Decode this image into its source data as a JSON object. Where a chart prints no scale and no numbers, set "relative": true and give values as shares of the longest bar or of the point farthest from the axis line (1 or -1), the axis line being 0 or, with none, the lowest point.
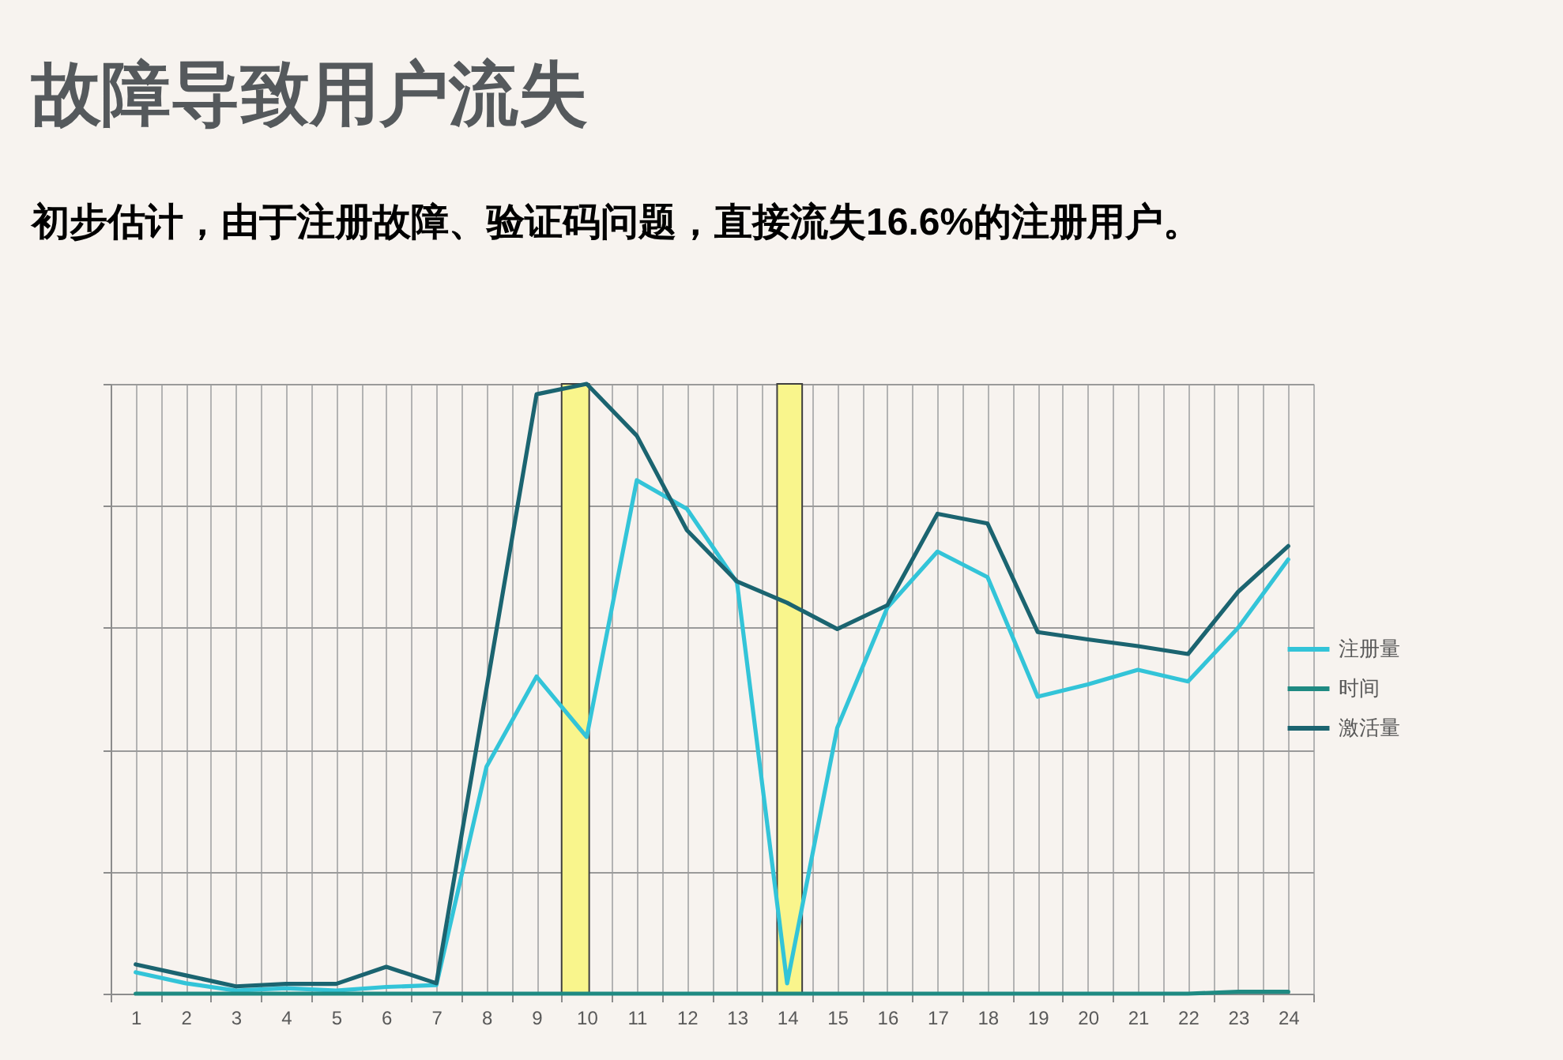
{
  "chart_data": {
    "type": "line",
    "title": "故障导致用户流失",
    "subtitle": "初步估计，由于注册故障、验证码问题，直接流失16.6%的注册用户。",
    "x": [
      1,
      2,
      3,
      4,
      5,
      6,
      7,
      8,
      9,
      10,
      11,
      12,
      13,
      14,
      15,
      16,
      17,
      18,
      19,
      20,
      21,
      22,
      23,
      24
    ],
    "xlim": [
      0.5,
      24.5
    ],
    "xticks": [
      {
        "value": 0.5,
        "label": null
      },
      1,
      {
        "value": 1.5,
        "label": null
      },
      2,
      {
        "value": 2.5,
        "label": null
      },
      3,
      {
        "value": 3.5,
        "label": null
      },
      4,
      {
        "value": 4.5,
        "label": null
      },
      5,
      {
        "value": 5.5,
        "label": null
      },
      6,
      {
        "value": 6.5,
        "label": null
      },
      7,
      {
        "value": 7.5,
        "label": null
      },
      8,
      {
        "value": 8.5,
        "label": null
      },
      9,
      {
        "value": 9.5,
        "label": null
      },
      10,
      {
        "value": 10.5,
        "label": null
      },
      11,
      {
        "value": 11.5,
        "label": null
      },
      12,
      {
        "value": 12.5,
        "label": null
      },
      13,
      {
        "value": 13.5,
        "label": null
      },
      14,
      {
        "value": 14.5,
        "label": null
      },
      15,
      {
        "value": 15.5,
        "label": null
      },
      16,
      {
        "value": 16.5,
        "label": null
      },
      17,
      {
        "value": 17.5,
        "label": null
      },
      18,
      {
        "value": 18.5,
        "label": null
      },
      19,
      {
        "value": 19.5,
        "label": null
      },
      20,
      {
        "value": 20.5,
        "label": null
      },
      21,
      {
        "value": 21.5,
        "label": null
      },
      22,
      {
        "value": 22.5,
        "label": null
      },
      23,
      {
        "value": 23.5,
        "label": null
      },
      24,
      {
        "value": 24.5,
        "label": null
      }
    ],
    "relative": true,
    "series": [
      {
        "name": "注册量",
        "color": "#33c4d8",
        "values": [
          0.035,
          0.017,
          0.005,
          0.009,
          0.005,
          0.011,
          0.014,
          0.372,
          0.52,
          0.421,
          0.842,
          0.795,
          0.674,
          0.017,
          0.436,
          0.633,
          0.725,
          0.683,
          0.487,
          0.507,
          0.531,
          0.512,
          0.6,
          0.712
        ]
      },
      {
        "name": "时间",
        "color": "#1f8a82",
        "values": [
          0,
          0,
          0,
          0,
          0,
          0,
          0,
          0,
          0,
          0,
          0,
          0,
          0,
          0,
          0,
          0,
          0,
          0,
          0,
          0,
          0,
          0,
          0.003,
          0.003
        ]
      },
      {
        "name": "激活量",
        "color": "#1b6470",
        "values": [
          0.048,
          0.03,
          0.012,
          0.016,
          0.016,
          0.044,
          0.017,
          0.5,
          0.983,
          1.0,
          0.915,
          0.76,
          0.676,
          0.641,
          0.598,
          0.637,
          0.787,
          0.771,
          0.593,
          0.581,
          0.57,
          0.557,
          0.659,
          0.734
        ]
      }
    ],
    "bands": [
      {
        "axis": "x",
        "from": 9.5,
        "to": 10.05,
        "color": "#f9f58c"
      },
      {
        "axis": "x",
        "from": 13.8,
        "to": 14.3,
        "color": "#f9f58c"
      }
    ],
    "legend": "right",
    "grid": true,
    "line_style": "solid"
  }
}
